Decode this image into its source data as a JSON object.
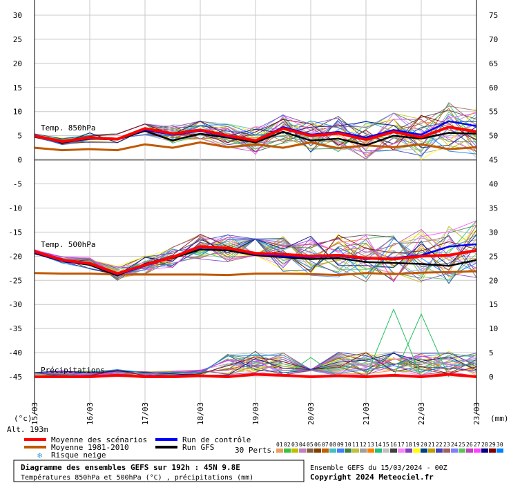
{
  "chart_data": {
    "type": "line",
    "x_dates": [
      "15/03",
      "16/03",
      "17/03",
      "18/03",
      "19/03",
      "20/03",
      "21/03",
      "22/03",
      "23/03"
    ],
    "y_left": {
      "unit": "(°c)",
      "ticks": [
        30,
        25,
        20,
        15,
        10,
        5,
        0,
        -5,
        -10,
        -15,
        -20,
        -25,
        -30,
        -35,
        -40,
        -45
      ],
      "range": [
        -45,
        30
      ]
    },
    "y_right": {
      "unit": "(mm)",
      "ticks": [
        75,
        70,
        65,
        60,
        55,
        50,
        45,
        40,
        35,
        30,
        25,
        20,
        15,
        10,
        5,
        0
      ]
    },
    "labels": {
      "t850": "Temp. 850hPa",
      "t500": "Temp. 500hPa",
      "precip": "Précipitations",
      "alt": "Alt. 193m"
    },
    "series": [
      {
        "name": "Moyenne des scénarios",
        "color": "#ff0000",
        "role": "mean",
        "t850": [
          5.0,
          3.8,
          4.6,
          4.3,
          6.5,
          5.4,
          6.2,
          5.0,
          4.0,
          6.5,
          5.0,
          5.5,
          4.2,
          5.8,
          4.7,
          6.8,
          5.8
        ],
        "t500": [
          -19.0,
          -20.8,
          -21.5,
          -23.6,
          -21.8,
          -20.2,
          -18.0,
          -18.3,
          -19.4,
          -19.6,
          -20.0,
          -19.8,
          -20.4,
          -20.6,
          -20.0,
          -19.8,
          -18.8
        ],
        "precip": [
          0,
          0,
          0,
          0.3,
          0,
          0,
          0.2,
          0,
          0.5,
          0.3,
          0,
          0.2,
          0,
          0.3,
          0,
          0.5,
          0
        ]
      },
      {
        "name": "Moyenne 1981-2010",
        "color": "#c05800",
        "role": "climatology",
        "t850": [
          2.5,
          2.0,
          2.2,
          2.0,
          3.2,
          2.5,
          3.6,
          2.6,
          3.2,
          2.5,
          3.6,
          2.4,
          3.0,
          2.6,
          3.2,
          2.2,
          2.6
        ],
        "t500": [
          -23.5,
          -23.6,
          -23.6,
          -23.8,
          -23.8,
          -23.8,
          -23.8,
          -23.9,
          -23.6,
          -23.6,
          -23.7,
          -23.9,
          -23.5,
          -23.7,
          -23.4,
          -23.3,
          -23.1
        ]
      },
      {
        "name": "Run de contrôle",
        "color": "#0000ff",
        "role": "control",
        "t850": [
          5.0,
          3.8,
          4.6,
          4.4,
          6.2,
          5.2,
          6.0,
          4.8,
          4.0,
          6.8,
          5.2,
          5.8,
          4.6,
          6.2,
          5.2,
          8.0,
          7.0
        ],
        "t500": [
          -19.2,
          -21.0,
          -21.6,
          -23.8,
          -22.0,
          -20.2,
          -18.2,
          -18.4,
          -19.6,
          -20.0,
          -20.2,
          -20.0,
          -20.6,
          -20.4,
          -19.8,
          -18.0,
          -17.5
        ]
      },
      {
        "name": "Run GFS",
        "color": "#000000",
        "role": "gfs",
        "t850": [
          5.0,
          3.6,
          4.4,
          4.2,
          6.0,
          4.0,
          5.4,
          4.6,
          3.6,
          5.8,
          4.0,
          4.4,
          3.0,
          5.0,
          4.4,
          5.6,
          5.4
        ],
        "t500": [
          -19.4,
          -21.0,
          -21.8,
          -24.0,
          -21.6,
          -20.4,
          -18.6,
          -18.8,
          -19.8,
          -20.2,
          -20.6,
          -20.4,
          -21.2,
          -21.4,
          -21.6,
          -22.0,
          -20.8
        ]
      }
    ],
    "precip_spikes": [
      {
        "x_idx": 10,
        "mm": 4
      },
      {
        "x_idx": 13,
        "mm": 14
      },
      {
        "x_idx": 14,
        "mm": 13
      }
    ]
  },
  "legend": {
    "items": [
      {
        "label": "Moyenne des scénarios",
        "color": "#ff0000"
      },
      {
        "label": "Run de contrôle",
        "color": "#0000ff"
      },
      {
        "label": "Moyenne 1981-2010",
        "color": "#c05800"
      },
      {
        "label": "Run GFS",
        "color": "#000000"
      }
    ],
    "snow_risk": "Risque neige",
    "perts_label": "30 Perts.",
    "perts": [
      "01",
      "02",
      "03",
      "04",
      "05",
      "06",
      "07",
      "08",
      "09",
      "10",
      "11",
      "12",
      "13",
      "14",
      "15",
      "16",
      "17",
      "18",
      "19",
      "20",
      "21",
      "22",
      "23",
      "24",
      "25",
      "26",
      "27",
      "28",
      "29",
      "30"
    ],
    "pert_colors": [
      "#e8a060",
      "#40c040",
      "#c0c000",
      "#c080c0",
      "#806040",
      "#804000",
      "#c06000",
      "#40c0c0",
      "#4080ff",
      "#408040",
      "#c0c040",
      "#a0a0a0",
      "#ff8000",
      "#20c080",
      "#c0c0c0",
      "#404040",
      "#ff80ff",
      "#8040c0",
      "#ffff00",
      "#004080",
      "#c0a000",
      "#4040c0",
      "#a06060",
      "#8080ff",
      "#60c060",
      "#c040c0",
      "#ff40ff",
      "#000080",
      "#800000",
      "#0080ff"
    ]
  },
  "footer": {
    "title": "Diagramme des ensembles GEFS sur 192h : 45N 9.8E",
    "subtitle": "Températures 850hPa et 500hPa (°C) , précipitations (mm)",
    "ensemble": "Ensemble GEFS du 15/03/2024 - 00Z",
    "copyright": "Copyright 2024 Meteociel.fr"
  },
  "ui": {
    "snowflake": "snowflake-icon"
  }
}
